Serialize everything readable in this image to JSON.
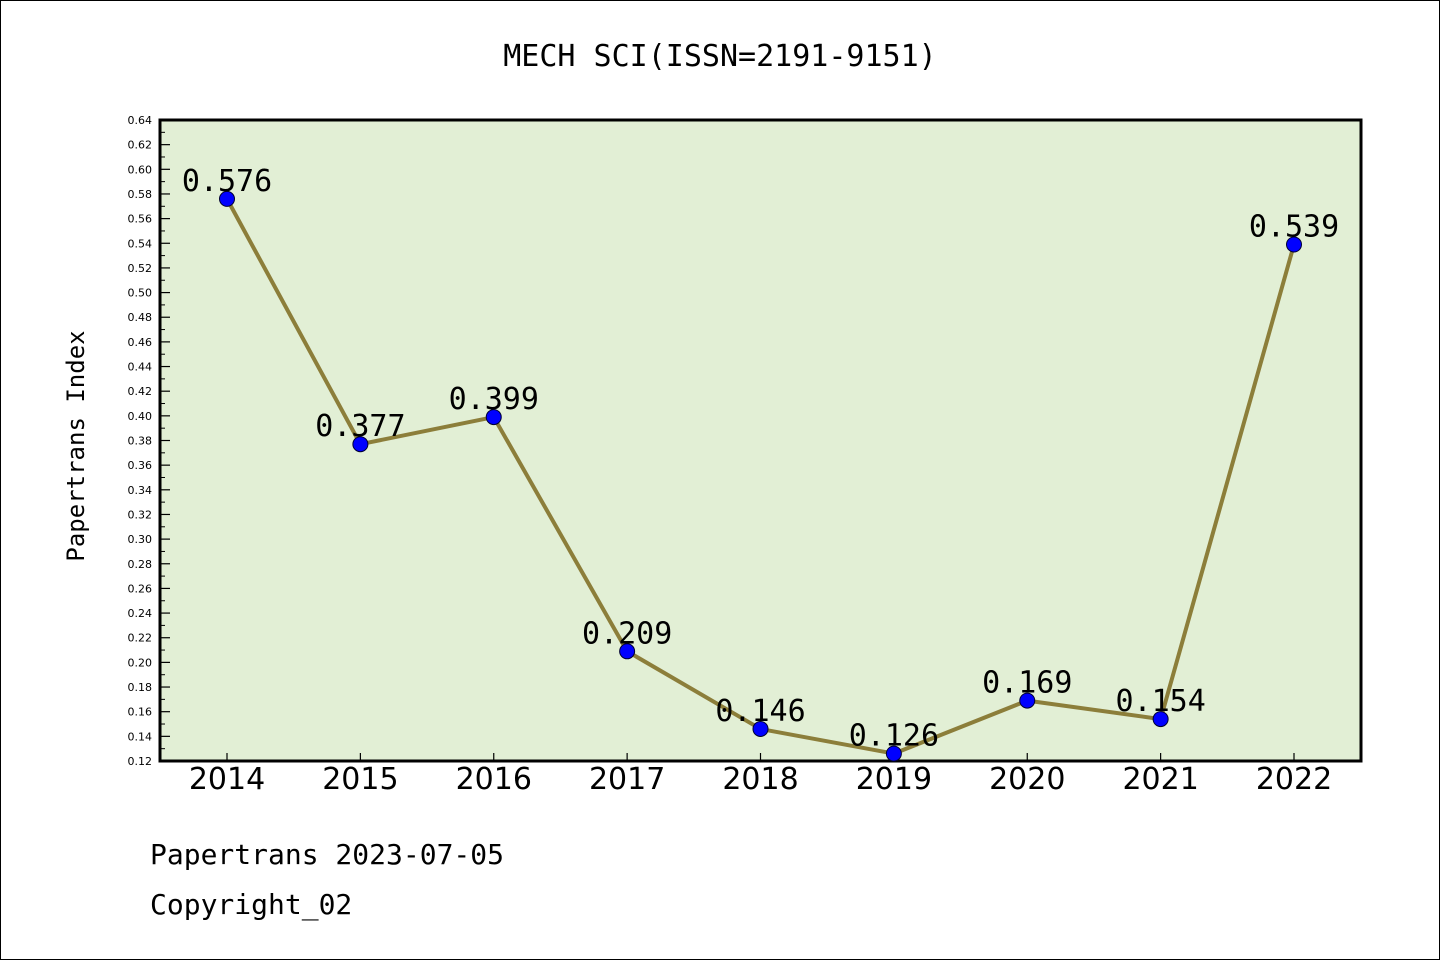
{
  "chart_data": {
    "type": "line",
    "title": "MECH SCI(ISSN=2191-9151)",
    "xlabel": "",
    "ylabel": "Papertrans Index",
    "categories": [
      "2014",
      "2015",
      "2016",
      "2017",
      "2018",
      "2019",
      "2020",
      "2021",
      "2022"
    ],
    "values": [
      0.576,
      0.377,
      0.399,
      0.209,
      0.146,
      0.126,
      0.169,
      0.154,
      0.539
    ],
    "data_labels": [
      "0.576",
      "0.377",
      "0.399",
      "0.209",
      "0.146",
      "0.126",
      "0.169",
      "0.154",
      "0.539"
    ],
    "ylim": [
      0.12,
      0.64
    ],
    "ytick_labels": [
      "0.12",
      "0.14",
      "0.16",
      "0.18",
      "0.20",
      "0.22",
      "0.24",
      "0.26",
      "0.28",
      "0.30",
      "0.32",
      "0.34",
      "0.36",
      "0.38",
      "0.40",
      "0.42",
      "0.44",
      "0.46",
      "0.48",
      "0.50",
      "0.52",
      "0.54",
      "0.56",
      "0.58",
      "0.60",
      "0.62",
      "0.64"
    ],
    "grid": false,
    "legend": "none",
    "colors": {
      "plot_background": "#e2efd5",
      "line": "#8c7e3a",
      "marker": "#0000ff"
    }
  },
  "footer": {
    "date_line": "Papertrans 2023-07-05",
    "copyright": "Copyright_02"
  }
}
